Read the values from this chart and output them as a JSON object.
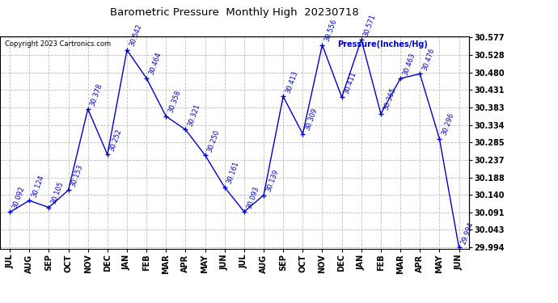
{
  "title": "Barometric Pressure  Monthly High  20230718",
  "copyright": "Copyright 2023 Cartronics.com",
  "ylabel": "Pressure(Inches/Hg)",
  "months": [
    "JUL",
    "AUG",
    "SEP",
    "OCT",
    "NOV",
    "DEC",
    "JAN",
    "FEB",
    "MAR",
    "APR",
    "MAY",
    "JUN",
    "JUL",
    "AUG",
    "SEP",
    "OCT",
    "NOV",
    "DEC",
    "JAN",
    "FEB",
    "MAR",
    "APR",
    "MAY",
    "JUN"
  ],
  "values": [
    30.092,
    30.124,
    30.105,
    30.153,
    30.378,
    30.252,
    30.542,
    30.464,
    30.358,
    30.321,
    30.25,
    30.161,
    30.093,
    30.139,
    30.413,
    30.309,
    30.556,
    30.411,
    30.571,
    30.365,
    30.463,
    30.476,
    30.296,
    29.994
  ],
  "ylim_min": 29.994,
  "ylim_max": 30.577,
  "line_color": "#0000cc",
  "marker_color": "#0000cc",
  "label_color": "#0000bb",
  "title_color": "#000000",
  "copyright_color": "#000000",
  "ylabel_color": "#0000cc",
  "bg_color": "#ffffff",
  "grid_color": "#bbbbbb",
  "yticks": [
    30.577,
    30.528,
    30.48,
    30.431,
    30.383,
    30.334,
    30.285,
    30.237,
    30.188,
    30.14,
    30.091,
    30.043,
    29.994
  ]
}
